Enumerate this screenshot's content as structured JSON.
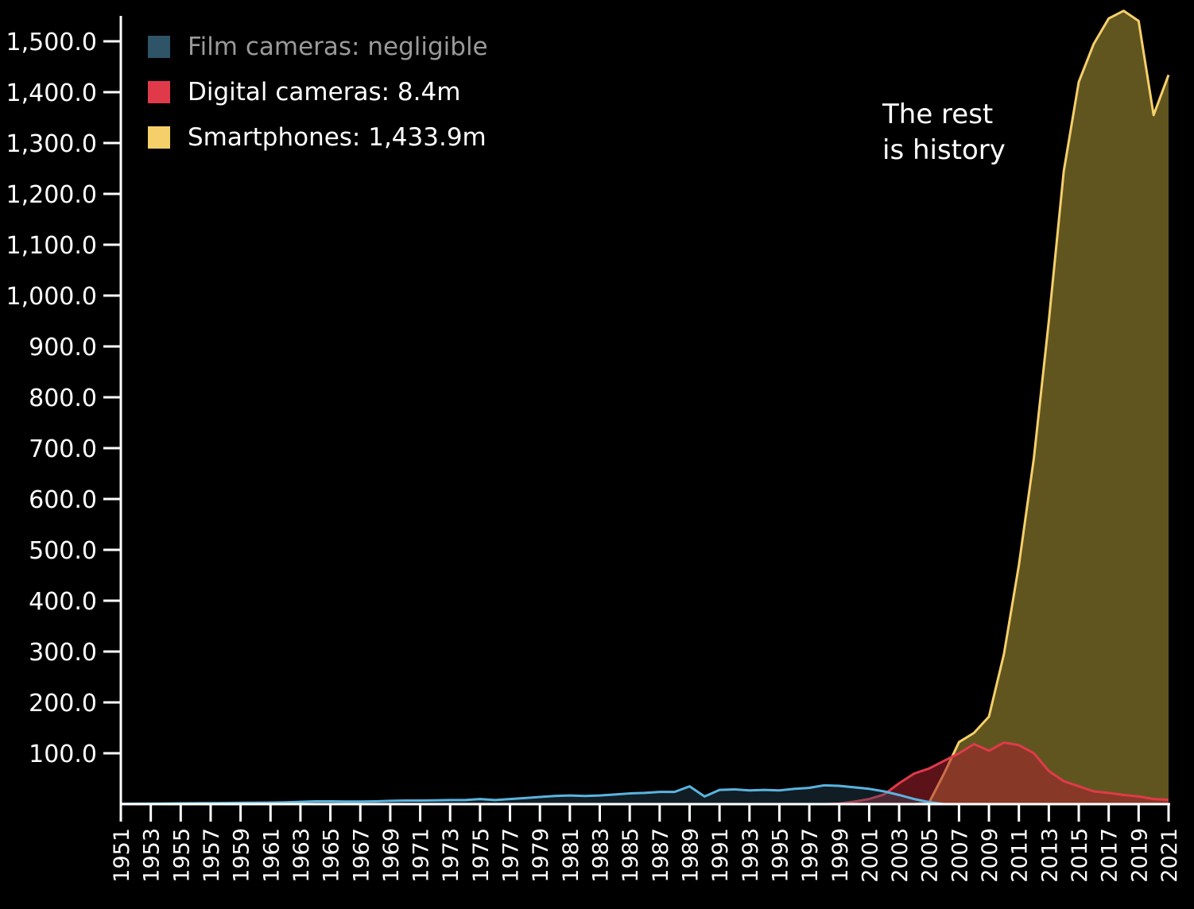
{
  "chart_data": {
    "type": "area",
    "x": [
      1951,
      1952,
      1953,
      1954,
      1955,
      1956,
      1957,
      1958,
      1959,
      1960,
      1961,
      1962,
      1963,
      1964,
      1965,
      1966,
      1967,
      1968,
      1969,
      1970,
      1971,
      1972,
      1973,
      1974,
      1975,
      1976,
      1977,
      1978,
      1979,
      1980,
      1981,
      1982,
      1983,
      1984,
      1985,
      1986,
      1987,
      1988,
      1989,
      1990,
      1991,
      1992,
      1993,
      1994,
      1995,
      1996,
      1997,
      1998,
      1999,
      2000,
      2001,
      2002,
      2003,
      2004,
      2005,
      2006,
      2007,
      2008,
      2009,
      2010,
      2011,
      2012,
      2013,
      2014,
      2015,
      2016,
      2017,
      2018,
      2019,
      2020,
      2021
    ],
    "xticks": [
      "1951",
      "1953",
      "1955",
      "1957",
      "1959",
      "1961",
      "1963",
      "1965",
      "1967",
      "1969",
      "1971",
      "1973",
      "1975",
      "1977",
      "1979",
      "1981",
      "1983",
      "1985",
      "1987",
      "1989",
      "1991",
      "1993",
      "1995",
      "1997",
      "1999",
      "2001",
      "2003",
      "2005",
      "2007",
      "2009",
      "2011",
      "2013",
      "2015",
      "2017",
      "2019",
      "2021"
    ],
    "yticks": [
      "100.0",
      "200.0",
      "300.0",
      "400.0",
      "500.0",
      "600.0",
      "700.0",
      "800.0",
      "900.0",
      "1,000.0",
      "1,100.0",
      "1,200.0",
      "1,300.0",
      "1,400.0",
      "1,500.0"
    ],
    "ylim": [
      0,
      1500
    ],
    "series": [
      {
        "name": "Film cameras",
        "color": "#5ab4e0",
        "values": [
          0.5,
          0.8,
          1.0,
          1.2,
          1.5,
          1.8,
          2.0,
          2.2,
          2.5,
          2.8,
          3.0,
          3.5,
          4.5,
          5.5,
          5.5,
          5.0,
          5.0,
          5.5,
          6.5,
          7.0,
          7.0,
          7.5,
          8.0,
          8.0,
          10.0,
          8.0,
          10.0,
          12.0,
          14.0,
          16.0,
          17.0,
          16.0,
          17.0,
          19.0,
          21.0,
          22.0,
          24.0,
          24.0,
          35.0,
          15.0,
          28.0,
          29.0,
          27.0,
          28.0,
          27.0,
          30.0,
          32.0,
          37.0,
          36.0,
          33.0,
          30.0,
          25.0,
          18.0,
          10.0,
          4.0,
          0,
          0,
          0,
          0,
          0,
          0,
          0,
          0,
          0,
          0,
          0,
          0,
          0,
          0,
          0,
          0
        ]
      },
      {
        "name": "Digital cameras",
        "color": "#e03a4a",
        "values": [
          0,
          0,
          0,
          0,
          0,
          0,
          0,
          0,
          0,
          0,
          0,
          0,
          0,
          0,
          0,
          0,
          0,
          0,
          0,
          0,
          0,
          0,
          0,
          0,
          0,
          0,
          0,
          0,
          0,
          0,
          0,
          0,
          0,
          0,
          0,
          0,
          0,
          0,
          0,
          0,
          0,
          0,
          0,
          0,
          0,
          0,
          0,
          0,
          1.0,
          5.0,
          10.0,
          19.0,
          41.0,
          60.0,
          70.0,
          85.0,
          100.0,
          118.0,
          105.0,
          121.0,
          116.0,
          100.0,
          65.0,
          45.0,
          35.0,
          25.0,
          22.0,
          18.0,
          15.0,
          10.0,
          8.4
        ]
      },
      {
        "name": "Smartphones",
        "color": "#f5d06a",
        "values": [
          0,
          0,
          0,
          0,
          0,
          0,
          0,
          0,
          0,
          0,
          0,
          0,
          0,
          0,
          0,
          0,
          0,
          0,
          0,
          0,
          0,
          0,
          0,
          0,
          0,
          0,
          0,
          0,
          0,
          0,
          0,
          0,
          0,
          0,
          0,
          0,
          0,
          0,
          0,
          0,
          0,
          0,
          0,
          0,
          0,
          0,
          0,
          0,
          0,
          0,
          0,
          0,
          0,
          0,
          3.0,
          60.0,
          122.0,
          140.0,
          172.0,
          295.0,
          470.0,
          680.0,
          950.0,
          1245.0,
          1420.0,
          1495.0,
          1545.0,
          1560.0,
          1540.0,
          1355.0,
          1433.9
        ]
      }
    ]
  },
  "legend": [
    {
      "label": "Film cameras: negligible",
      "color": "#2f5468"
    },
    {
      "label": "Digital cameras: 8.4m",
      "color": "#e03a4a"
    },
    {
      "label": "Smartphones: 1,433.9m",
      "color": "#f5d06a"
    }
  ],
  "annotation": {
    "line1": "The rest",
    "line2": "is history"
  }
}
